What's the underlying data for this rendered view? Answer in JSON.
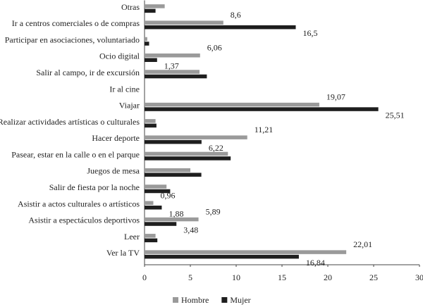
{
  "chart_data": {
    "type": "bar",
    "orientation": "horizontal",
    "categories": [
      "Otras",
      "Ir a centros comerciales o de compras",
      "Participar en asociaciones, voluntariado",
      "Ocio digital",
      "Salir al campo, ir de excursión",
      "Ir al cine",
      "Viajar",
      "Realizar actividades artísticas o culturales",
      "Hacer deporte",
      "Pasear, estar en la calle o en el parque",
      "Juegos de mesa",
      "Salir de fiesta por la noche",
      "Asistir a actos culturales o artísticos",
      "Asistir a espectáculos deportivos",
      "Leer",
      "Ver la TV"
    ],
    "series": [
      {
        "name": "Hombre",
        "color": "#9a9a9a",
        "values": [
          2.2,
          8.6,
          0.3,
          6.06,
          6.0,
          0,
          19.07,
          1.2,
          11.21,
          9.1,
          5.0,
          2.4,
          0.96,
          5.89,
          1.2,
          22.01
        ],
        "value_labels": [
          null,
          "8,6",
          null,
          "6,06",
          null,
          null,
          "19,07",
          null,
          "11,21",
          null,
          null,
          null,
          "0,96",
          "5,89",
          null,
          "22,01"
        ]
      },
      {
        "name": "Mujer",
        "color": "#1e1e1e",
        "values": [
          1.2,
          16.5,
          0.5,
          1.37,
          6.8,
          0,
          25.51,
          1.3,
          6.22,
          9.4,
          6.2,
          2.8,
          1.88,
          3.48,
          1.4,
          16.84
        ],
        "value_labels": [
          null,
          "16,5",
          null,
          "1,37",
          null,
          null,
          "25,51",
          null,
          "6,22",
          null,
          null,
          null,
          "1,88",
          "3,48",
          null,
          "16,84"
        ]
      }
    ],
    "xlim": [
      0,
      30
    ],
    "xticks": [
      0,
      5,
      10,
      15,
      20,
      25,
      30
    ],
    "grid": false,
    "legend": "bottom"
  }
}
